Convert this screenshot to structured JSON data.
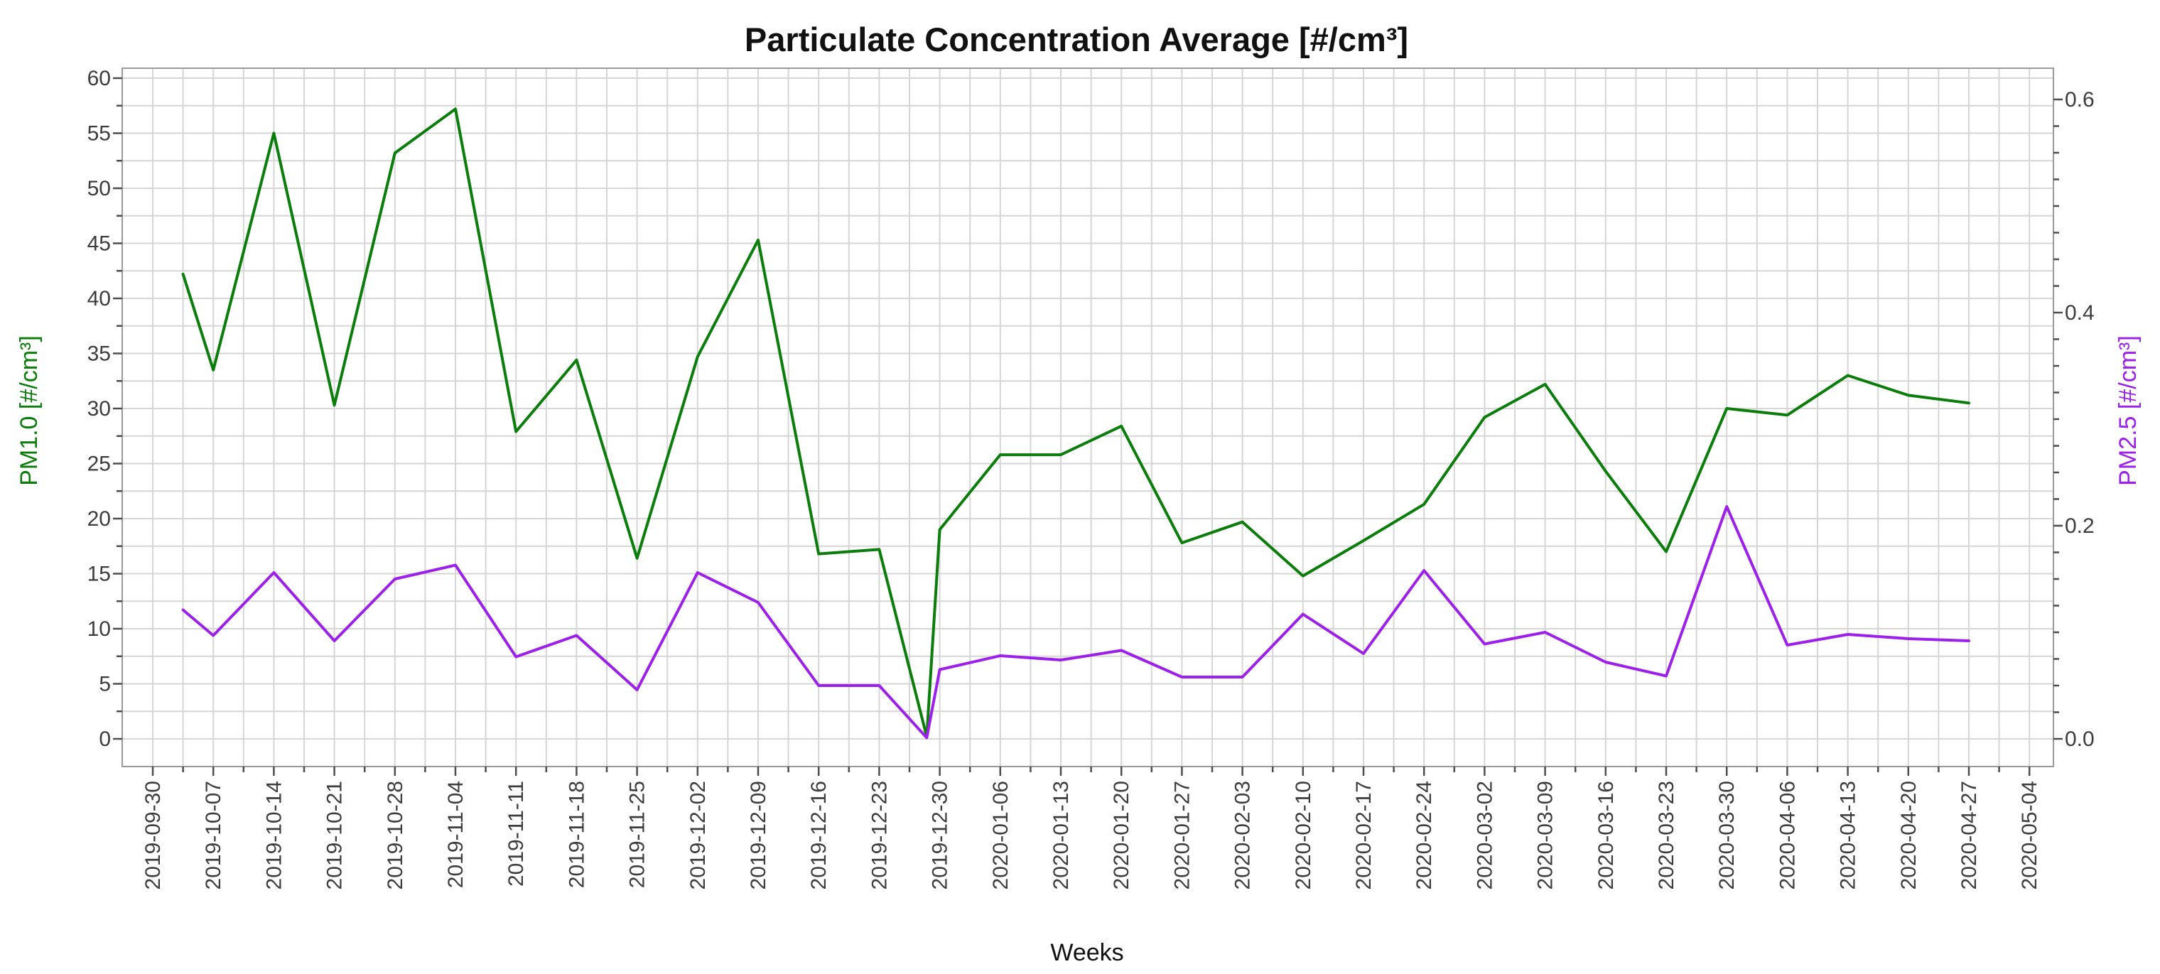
{
  "title": "Particulate Concentration Average [#/cm³]",
  "x_axis": {
    "label": "Weeks",
    "tick_labels": [
      "2019-09-30",
      "2019-10-07",
      "2019-10-14",
      "2019-10-21",
      "2019-10-28",
      "2019-11-04",
      "2019-11-11",
      "2019-11-18",
      "2019-11-25",
      "2019-12-02",
      "2019-12-09",
      "2019-12-16",
      "2019-12-23",
      "2019-12-30",
      "2020-01-06",
      "2020-01-13",
      "2020-01-20",
      "2020-01-27",
      "2020-02-03",
      "2020-02-10",
      "2020-02-17",
      "2020-02-24",
      "2020-03-02",
      "2020-03-09",
      "2020-03-16",
      "2020-03-23",
      "2020-03-30",
      "2020-04-06",
      "2020-04-13",
      "2020-04-20",
      "2020-04-27",
      "2020-05-04"
    ]
  },
  "y_left": {
    "label": "PM1.0 [#/cm³]",
    "color": "#0a7d0a",
    "tick_labels": [
      "0",
      "5",
      "10",
      "15",
      "20",
      "25",
      "30",
      "35",
      "40",
      "45",
      "50",
      "55",
      "60"
    ],
    "range": [
      0,
      60
    ]
  },
  "y_right": {
    "label": "PM2.5 [#/cm³]",
    "color": "#9d20ea",
    "tick_labels": [
      "0.0",
      "0.2",
      "0.4",
      "0.6"
    ],
    "range": [
      0,
      0.6
    ]
  },
  "colors": {
    "grid": "#d6d6d6",
    "frame": "#9a9a9a",
    "tick": "#4d4d4d",
    "tick_text": "#3d3d3d"
  },
  "chart_data": {
    "type": "line",
    "title": "Particulate Concentration Average [#/cm³]",
    "xlabel": "Weeks",
    "x_tick_labels": [
      "2019-09-30",
      "2019-10-07",
      "2019-10-14",
      "2019-10-21",
      "2019-10-28",
      "2019-11-04",
      "2019-11-11",
      "2019-11-18",
      "2019-11-25",
      "2019-12-02",
      "2019-12-09",
      "2019-12-16",
      "2019-12-23",
      "2019-12-30",
      "2020-01-06",
      "2020-01-13",
      "2020-01-20",
      "2020-01-27",
      "2020-02-03",
      "2020-02-10",
      "2020-02-17",
      "2020-02-24",
      "2020-03-02",
      "2020-03-09",
      "2020-03-16",
      "2020-03-23",
      "2020-03-30",
      "2020-04-06",
      "2020-04-13",
      "2020-04-20",
      "2020-04-27",
      "2020-05-04"
    ],
    "layout": {
      "grid": true,
      "legend": "none",
      "y_left_range": [
        0,
        60
      ],
      "y_right_range": [
        0,
        0.6
      ],
      "y_left_step": 5,
      "y_right_step": 0.2
    },
    "series": [
      {
        "name": "PM1.0",
        "axis": "left",
        "color": "#0a7d0a",
        "unit": "#/cm³",
        "points": [
          {
            "date": "2019-10-03",
            "day": 3.5,
            "value": 42.2
          },
          {
            "date": "2019-10-07",
            "day": 7,
            "value": 33.5
          },
          {
            "date": "2019-10-14",
            "day": 14,
            "value": 55.0
          },
          {
            "date": "2019-10-21",
            "day": 21,
            "value": 30.3
          },
          {
            "date": "2019-10-28",
            "day": 28,
            "value": 53.2
          },
          {
            "date": "2019-11-04",
            "day": 35,
            "value": 57.2
          },
          {
            "date": "2019-11-11",
            "day": 42,
            "value": 27.9
          },
          {
            "date": "2019-11-18",
            "day": 49,
            "value": 34.4
          },
          {
            "date": "2019-11-25",
            "day": 56,
            "value": 16.4
          },
          {
            "date": "2019-12-02",
            "day": 63,
            "value": 34.7
          },
          {
            "date": "2019-12-09",
            "day": 70,
            "value": 45.3
          },
          {
            "date": "2019-12-16",
            "day": 77,
            "value": 16.8
          },
          {
            "date": "2019-12-23",
            "day": 84,
            "value": 17.2
          },
          {
            "date": "2019-12-28",
            "day": 89.5,
            "value": 0.2
          },
          {
            "date": "2019-12-30",
            "day": 91,
            "value": 19.0
          },
          {
            "date": "2020-01-06",
            "day": 98,
            "value": 25.8
          },
          {
            "date": "2020-01-13",
            "day": 105,
            "value": 25.8
          },
          {
            "date": "2020-01-20",
            "day": 112,
            "value": 28.4
          },
          {
            "date": "2020-01-27",
            "day": 119,
            "value": 17.8
          },
          {
            "date": "2020-02-03",
            "day": 126,
            "value": 19.7
          },
          {
            "date": "2020-02-10",
            "day": 133,
            "value": 14.8
          },
          {
            "date": "2020-02-17",
            "day": 140,
            "value": 18.0
          },
          {
            "date": "2020-02-24",
            "day": 147,
            "value": 21.3
          },
          {
            "date": "2020-03-02",
            "day": 154,
            "value": 29.2
          },
          {
            "date": "2020-03-09",
            "day": 161,
            "value": 32.2
          },
          {
            "date": "2020-03-16",
            "day": 168,
            "value": 24.3
          },
          {
            "date": "2020-03-23",
            "day": 175,
            "value": 17.0
          },
          {
            "date": "2020-03-30",
            "day": 182,
            "value": 30.0
          },
          {
            "date": "2020-04-06",
            "day": 189,
            "value": 29.4
          },
          {
            "date": "2020-04-13",
            "day": 196,
            "value": 33.0
          },
          {
            "date": "2020-04-20",
            "day": 203,
            "value": 31.2
          },
          {
            "date": "2020-04-27",
            "day": 210,
            "value": 30.5
          }
        ]
      },
      {
        "name": "PM2.5",
        "axis": "right",
        "color": "#9d20ea",
        "unit": "#/cm³",
        "points": [
          {
            "date": "2019-10-03",
            "day": 3.5,
            "value": 0.121
          },
          {
            "date": "2019-10-07",
            "day": 7,
            "value": 0.097
          },
          {
            "date": "2019-10-14",
            "day": 14,
            "value": 0.156
          },
          {
            "date": "2019-10-21",
            "day": 21,
            "value": 0.092
          },
          {
            "date": "2019-10-28",
            "day": 28,
            "value": 0.15
          },
          {
            "date": "2019-11-04",
            "day": 35,
            "value": 0.163
          },
          {
            "date": "2019-11-11",
            "day": 42,
            "value": 0.077
          },
          {
            "date": "2019-11-18",
            "day": 49,
            "value": 0.097
          },
          {
            "date": "2019-11-25",
            "day": 56,
            "value": 0.046
          },
          {
            "date": "2019-12-02",
            "day": 63,
            "value": 0.156
          },
          {
            "date": "2019-12-09",
            "day": 70,
            "value": 0.128
          },
          {
            "date": "2019-12-16",
            "day": 77,
            "value": 0.05
          },
          {
            "date": "2019-12-23",
            "day": 84,
            "value": 0.05
          },
          {
            "date": "2019-12-28",
            "day": 89.5,
            "value": 0.001
          },
          {
            "date": "2019-12-30",
            "day": 91,
            "value": 0.065
          },
          {
            "date": "2020-01-06",
            "day": 98,
            "value": 0.078
          },
          {
            "date": "2020-01-13",
            "day": 105,
            "value": 0.074
          },
          {
            "date": "2020-01-20",
            "day": 112,
            "value": 0.083
          },
          {
            "date": "2020-01-27",
            "day": 119,
            "value": 0.058
          },
          {
            "date": "2020-02-03",
            "day": 126,
            "value": 0.058
          },
          {
            "date": "2020-02-10",
            "day": 133,
            "value": 0.117
          },
          {
            "date": "2020-02-17",
            "day": 140,
            "value": 0.08
          },
          {
            "date": "2020-02-24",
            "day": 147,
            "value": 0.158
          },
          {
            "date": "2020-03-02",
            "day": 154,
            "value": 0.089
          },
          {
            "date": "2020-03-09",
            "day": 161,
            "value": 0.1
          },
          {
            "date": "2020-03-16",
            "day": 168,
            "value": 0.072
          },
          {
            "date": "2020-03-23",
            "day": 175,
            "value": 0.059
          },
          {
            "date": "2020-03-30",
            "day": 182,
            "value": 0.218
          },
          {
            "date": "2020-04-06",
            "day": 189,
            "value": 0.088
          },
          {
            "date": "2020-04-13",
            "day": 196,
            "value": 0.098
          },
          {
            "date": "2020-04-20",
            "day": 203,
            "value": 0.094
          },
          {
            "date": "2020-04-27",
            "day": 210,
            "value": 0.092
          }
        ]
      }
    ]
  }
}
